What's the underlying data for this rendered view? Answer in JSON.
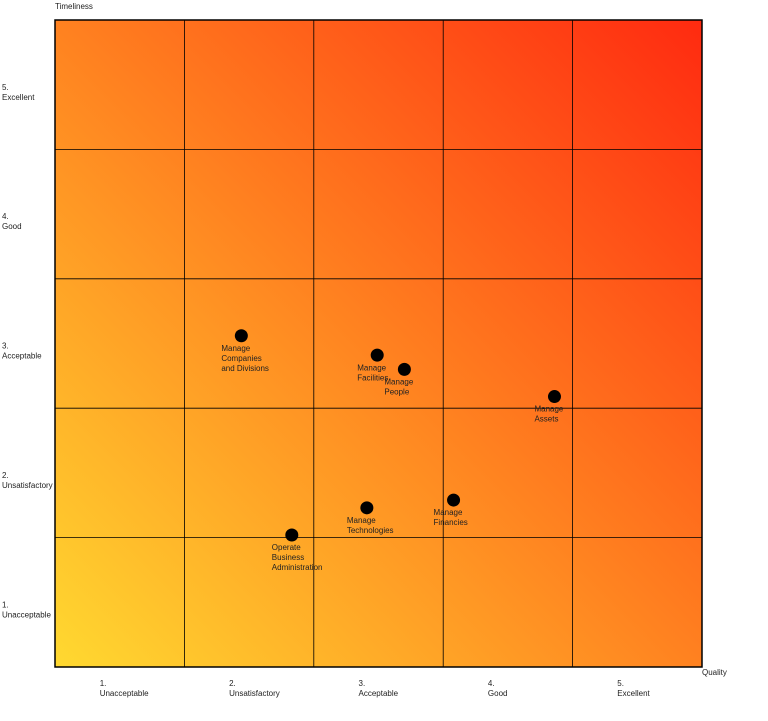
{
  "chart_data": {
    "type": "scatter",
    "x_label": "Quality",
    "y_label": "Timeliness",
    "xlim": [
      0.5,
      5.5
    ],
    "ylim": [
      0.5,
      5.5
    ],
    "xticks": [
      {
        "value": 1,
        "label": [
          "1.",
          "Unacceptable"
        ]
      },
      {
        "value": 2,
        "label": [
          "2.",
          "Unsatisfactory"
        ]
      },
      {
        "value": 3,
        "label": [
          "3.",
          "Acceptable"
        ]
      },
      {
        "value": 4,
        "label": [
          "4.",
          "Good"
        ]
      },
      {
        "value": 5,
        "label": [
          "5.",
          "Excellent"
        ]
      }
    ],
    "yticks": [
      {
        "value": 1,
        "label": [
          "1.",
          "Unacceptable"
        ]
      },
      {
        "value": 2,
        "label": [
          "2.",
          "Unsatisfactory"
        ]
      },
      {
        "value": 3,
        "label": [
          "3.",
          "Acceptable"
        ]
      },
      {
        "value": 4,
        "label": [
          "4.",
          "Good"
        ]
      },
      {
        "value": 5,
        "label": [
          "5.",
          "Excellent"
        ]
      }
    ],
    "xgrid": [
      1.5,
      2.5,
      3.5,
      4.5
    ],
    "ygrid": [
      1.5,
      2.5,
      3.5,
      4.5
    ],
    "gradient": [
      "#ffd930",
      "#ff2a10"
    ],
    "color": "#000000",
    "points": [
      {
        "label": [
          "Manage",
          "Companies",
          "and Divisions"
        ],
        "x": 1.94,
        "y": 3.06
      },
      {
        "label": [
          "Manage",
          "Facilities"
        ],
        "x": 2.99,
        "y": 2.91
      },
      {
        "label": [
          "Manage",
          "People"
        ],
        "x": 3.2,
        "y": 2.8
      },
      {
        "label": [
          "Manage",
          "Assets"
        ],
        "x": 4.36,
        "y": 2.59
      },
      {
        "label": [
          "Manage",
          "Financies"
        ],
        "x": 3.58,
        "y": 1.79
      },
      {
        "label": [
          "Manage",
          "Technologies"
        ],
        "x": 2.91,
        "y": 1.73
      },
      {
        "label": [
          "Operate",
          "Business",
          "Administration"
        ],
        "x": 2.33,
        "y": 1.52
      }
    ]
  }
}
